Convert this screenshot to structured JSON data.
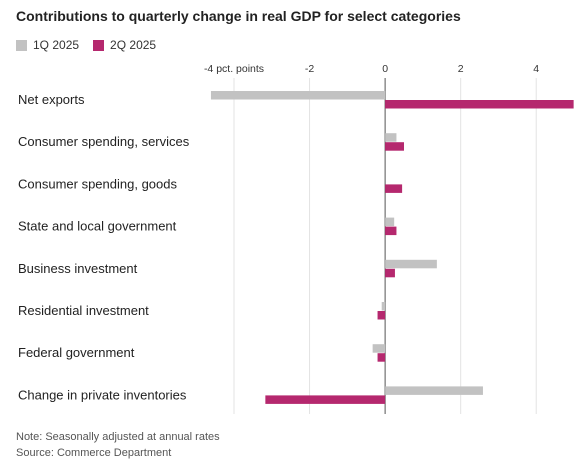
{
  "chart_data": {
    "type": "bar",
    "orientation": "horizontal",
    "title": "Contributions to quarterly change in real GDP for select categories",
    "categories": [
      "Net exports",
      "Consumer spending, services",
      "Consumer spending, goods",
      "State and local government",
      "Business investment",
      "Residential investment",
      "Federal government",
      "Change in private inventories"
    ],
    "series": [
      {
        "name": "1Q 2025",
        "color": "#c2c2c2",
        "values": [
          -4.61,
          0.3,
          0.0,
          0.24,
          1.37,
          -0.09,
          -0.33,
          2.59
        ]
      },
      {
        "name": "2Q 2025",
        "color": "#b5286e",
        "values": [
          4.99,
          0.5,
          0.45,
          0.3,
          0.26,
          -0.2,
          -0.2,
          -3.17
        ]
      }
    ],
    "xlim": [
      -4.9,
      5.0
    ],
    "xticks": [
      -4,
      -2,
      0,
      2,
      4
    ],
    "xtick_labels": [
      "-4 pct. points",
      "-2",
      "0",
      "2",
      "4"
    ],
    "grid": true,
    "legend_position": "top-left"
  },
  "notes": {
    "note": "Note: Seasonally adjusted at annual rates",
    "source": "Source: Commerce Department"
  }
}
